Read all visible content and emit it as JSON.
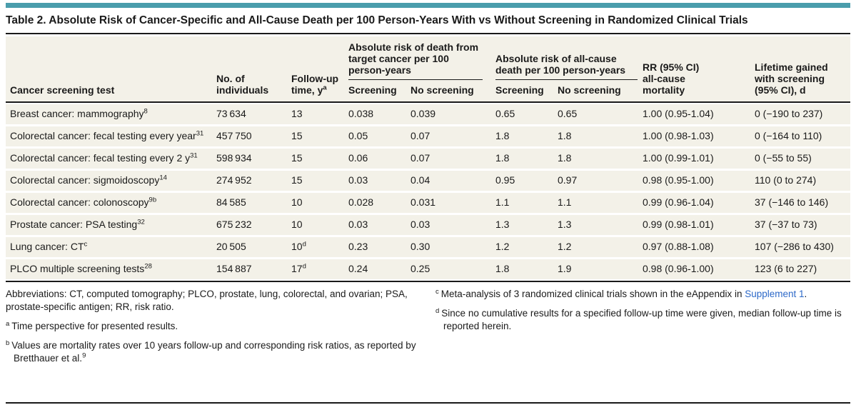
{
  "colors": {
    "accent": "#4A9DAC",
    "beige": "#F3F1E8",
    "link": "#2D69C8"
  },
  "title": "Table 2. Absolute Risk of Cancer-Specific and All-Cause Death per 100 Person-Years With vs Without Screening in Randomized Clinical Trials",
  "header": {
    "col_test": "Cancer screening test",
    "col_individuals": "No. of individuals",
    "col_followup": "Follow-up time, y",
    "col_followup_sup": "a",
    "span_target": "Absolute risk of death from target cancer per 100 person-years",
    "span_allcause": "Absolute risk of all-cause death per 100 person-years",
    "sub_screening": "Screening",
    "sub_no_screening": "No screening",
    "col_rr": "RR (95% CI) all-cause mortality",
    "col_lifetime": "Lifetime gained with screening (95% CI), d"
  },
  "rows": [
    {
      "test": "Breast cancer: mammography",
      "test_sup": "8",
      "individuals": "73 634",
      "followup": "13",
      "followup_sup": "",
      "target_screening": "0.038",
      "target_no_screening": "0.039",
      "allcause_screening": "0.65",
      "allcause_no_screening": "0.65",
      "rr": "1.00 (0.95-1.04)",
      "lifetime": "0 (−190 to 237)"
    },
    {
      "test": "Colorectal cancer: fecal testing every year",
      "test_sup": "31",
      "individuals": "457 750",
      "followup": "15",
      "followup_sup": "",
      "target_screening": "0.05",
      "target_no_screening": "0.07",
      "allcause_screening": "1.8",
      "allcause_no_screening": "1.8",
      "rr": "1.00 (0.98-1.03)",
      "lifetime": "0 (−164 to 110)"
    },
    {
      "test": "Colorectal cancer: fecal testing every 2 y",
      "test_sup": "31",
      "individuals": "598 934",
      "followup": "15",
      "followup_sup": "",
      "target_screening": "0.06",
      "target_no_screening": "0.07",
      "allcause_screening": "1.8",
      "allcause_no_screening": "1.8",
      "rr": "1.00 (0.99-1.01)",
      "lifetime": "0 (−55 to 55)"
    },
    {
      "test": "Colorectal cancer: sigmoidoscopy",
      "test_sup": "14",
      "individuals": "274 952",
      "followup": "15",
      "followup_sup": "",
      "target_screening": "0.03",
      "target_no_screening": "0.04",
      "allcause_screening": "0.95",
      "allcause_no_screening": "0.97",
      "rr": "0.98 (0.95-1.00)",
      "lifetime": "110 (0 to 274)"
    },
    {
      "test": "Colorectal cancer: colonoscopy",
      "test_sup": "9b",
      "individuals": "84 585",
      "followup": "10",
      "followup_sup": "",
      "target_screening": "0.028",
      "target_no_screening": "0.031",
      "allcause_screening": "1.1",
      "allcause_no_screening": "1.1",
      "rr": "0.99 (0.96-1.04)",
      "lifetime": "37 (−146 to 146)"
    },
    {
      "test": "Prostate cancer: PSA testing",
      "test_sup": "32",
      "individuals": "675 232",
      "followup": "10",
      "followup_sup": "",
      "target_screening": "0.03",
      "target_no_screening": "0.03",
      "allcause_screening": "1.3",
      "allcause_no_screening": "1.3",
      "rr": "0.99 (0.98-1.01)",
      "lifetime": "37 (−37 to 73)"
    },
    {
      "test": "Lung cancer: CT",
      "test_sup": "c",
      "individuals": "20 505",
      "followup": "10",
      "followup_sup": "d",
      "target_screening": "0.23",
      "target_no_screening": "0.30",
      "allcause_screening": "1.2",
      "allcause_no_screening": "1.2",
      "rr": "0.97 (0.88-1.08)",
      "lifetime": "107 (−286 to 430)"
    },
    {
      "test": "PLCO multiple screening tests",
      "test_sup": "28",
      "individuals": "154 887",
      "followup": "17",
      "followup_sup": "d",
      "target_screening": "0.24",
      "target_no_screening": "0.25",
      "allcause_screening": "1.8",
      "allcause_no_screening": "1.9",
      "rr": "0.98 (0.96-1.00)",
      "lifetime": "123 (6 to 227)"
    }
  ],
  "footnotes": {
    "abbreviations": "Abbreviations: CT, computed tomography; PLCO, prostate, lung, colorectal, and ovarian; PSA, prostate-specific antigen; RR, risk ratio.",
    "a": {
      "marker": "a",
      "text": "Time perspective for presented results."
    },
    "b": {
      "marker": "b",
      "text": "Values are mortality rates over 10 years follow-up and corresponding risk ratios, as reported by Bretthauer et al.",
      "trailing_sup": "9"
    },
    "c": {
      "marker": "c",
      "text": "Meta-analysis of 3 randomized clinical trials shown in the eAppendix in ",
      "link": "Supplement 1",
      "after": "."
    },
    "d": {
      "marker": "d",
      "text": "Since no cumulative results for a specified follow-up time were given, median follow-up time is reported herein."
    }
  }
}
